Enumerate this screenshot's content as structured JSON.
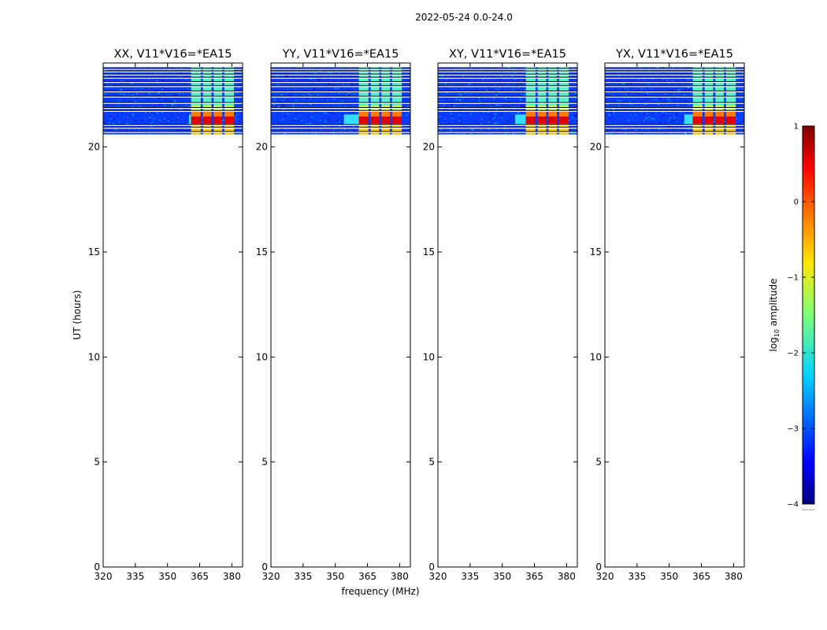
{
  "figure": {
    "suptitle": "2022-05-24 0.0-24.0",
    "xlabel": "frequency (MHz)",
    "ylabel": "UT (hours)",
    "colorbar": {
      "label_main": "log",
      "label_sub": "10",
      "label_tail": " amplitude",
      "ticks": [
        "1",
        "0",
        "−1",
        "−2",
        "−3",
        "−4"
      ],
      "dots": "......"
    }
  },
  "chart_data": {
    "type": "heatmap",
    "title": "2022-05-24 0.0-24.0",
    "xlabel": "frequency (MHz)",
    "ylabel": "UT (hours)",
    "xlim": [
      320,
      385
    ],
    "ylim": [
      0,
      24
    ],
    "xticks": [
      320,
      335,
      350,
      365,
      380
    ],
    "yticks": [
      0,
      5,
      10,
      15,
      20
    ],
    "colorbar": {
      "label": "log10 amplitude",
      "range": [
        -4,
        1
      ],
      "ticks": [
        1,
        0,
        -1,
        -2,
        -3,
        -4
      ]
    },
    "data_time_range": [
      20.6,
      23.8
    ],
    "panels": [
      {
        "title": "XX, V11*V16=*EA15",
        "bright_from_mhz": 360,
        "band_start_mhz": 361
      },
      {
        "title": "YY, V11*V16=*EA15",
        "bright_from_mhz": 354,
        "band_start_mhz": 361
      },
      {
        "title": "XY, V11*V16=*EA15",
        "bright_from_mhz": 356,
        "band_start_mhz": 361
      },
      {
        "title": "YX, V11*V16=*EA15",
        "bright_from_mhz": 357,
        "band_start_mhz": 361
      }
    ],
    "bands_mhz": [
      [
        361,
        365.5
      ],
      [
        366.5,
        370.5
      ],
      [
        371.5,
        375.5
      ],
      [
        376.5,
        381
      ]
    ],
    "gap_lines_ut": [
      20.72,
      20.92,
      21.05,
      21.72,
      21.86,
      22.1,
      22.4,
      22.65,
      22.9,
      23.1,
      23.3,
      23.45,
      23.6,
      23.72
    ]
  }
}
